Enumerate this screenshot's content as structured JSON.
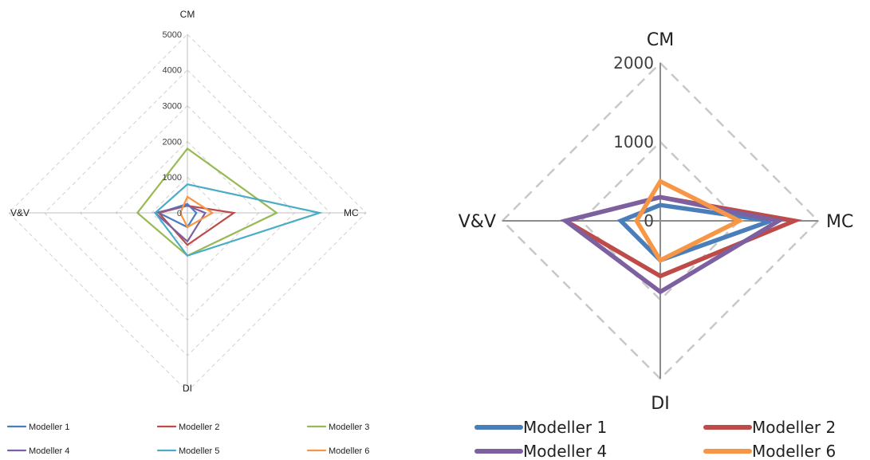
{
  "chart_data": [
    {
      "type": "radar",
      "axes": [
        "CM",
        "MC",
        "DI",
        "V&V"
      ],
      "r_ticks": [
        "0",
        "1000",
        "2000",
        "3000",
        "4000",
        "5000"
      ],
      "rlim": [
        0,
        5000
      ],
      "grid": true,
      "legend_position": "bottom",
      "series": [
        {
          "name": "Modeller 1",
          "color": "#4a7ebb",
          "values": [
            250,
            250,
            400,
            800
          ]
        },
        {
          "name": "Modeller 2",
          "color": "#be4b48",
          "values": [
            200,
            1300,
            900,
            800
          ]
        },
        {
          "name": "Modeller 3",
          "color": "#98b954",
          "values": [
            1800,
            2500,
            1200,
            1400
          ]
        },
        {
          "name": "Modeller 4",
          "color": "#7d60a0",
          "values": [
            200,
            500,
            800,
            900
          ]
        },
        {
          "name": "Modeller 5",
          "color": "#4bacc6",
          "values": [
            800,
            3700,
            1200,
            900
          ]
        },
        {
          "name": "Modeller 6",
          "color": "#f79646",
          "values": [
            450,
            700,
            400,
            200
          ]
        }
      ]
    },
    {
      "type": "radar",
      "axes": [
        "CM",
        "MC",
        "DI",
        "V&V"
      ],
      "r_ticks": [
        "0",
        "1000",
        "2000"
      ],
      "rlim": [
        0,
        2000
      ],
      "grid": true,
      "legend_position": "bottom",
      "series": [
        {
          "name": "Modeller 1",
          "color": "#4a7ebb",
          "values": [
            200,
            1400,
            500,
            500
          ]
        },
        {
          "name": "Modeller 2",
          "color": "#be4b48",
          "values": [
            300,
            1700,
            700,
            1200
          ]
        },
        {
          "name": "Modeller 4",
          "color": "#7d60a0",
          "values": [
            300,
            1500,
            900,
            1200
          ]
        },
        {
          "name": "Modeller 6",
          "color": "#f79646",
          "values": [
            500,
            1000,
            500,
            300
          ]
        }
      ]
    }
  ]
}
